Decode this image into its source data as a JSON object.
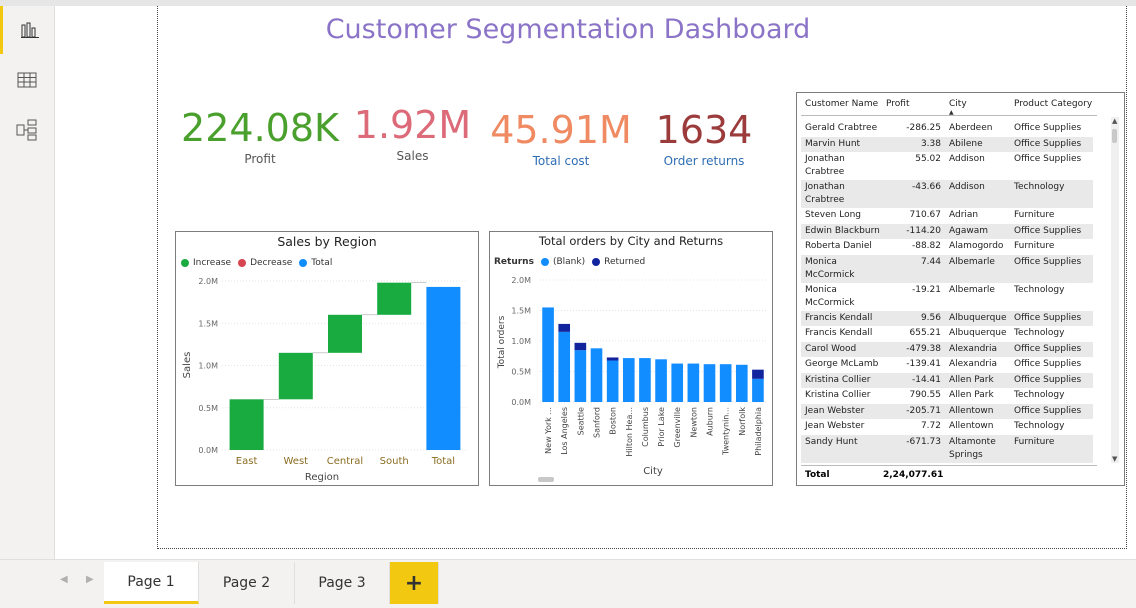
{
  "dashboard": {
    "title": "Customer Segmentation Dashboard"
  },
  "nav": {
    "items": [
      "report-view",
      "data-view",
      "model-view"
    ]
  },
  "kpis": [
    {
      "value": "224.08K",
      "label": "Profit",
      "color": "#4aa02c"
    },
    {
      "value": "1.92M",
      "label": "Sales",
      "color": "#dc6a78"
    },
    {
      "value": "45.91M",
      "label": "Total cost",
      "color": "#ef8a62"
    },
    {
      "value": "1634",
      "label": "Order returns",
      "color": "#9c3b3b"
    }
  ],
  "waterfall": {
    "title": "Sales by Region",
    "legend": [
      "Increase",
      "Decrease",
      "Total"
    ],
    "ylabel": "Sales",
    "xlabel": "Region",
    "yticks": [
      "0.0M",
      "0.5M",
      "1.0M",
      "1.5M",
      "2.0M"
    ]
  },
  "orders": {
    "title": "Total orders by City and Returns",
    "legend_title": "Returns",
    "legend": [
      "(Blank)",
      "Returned"
    ],
    "ylabel": "Total orders",
    "xlabel": "City",
    "yticks": [
      "0.0M",
      "0.5M",
      "1.0M",
      "1.5M",
      "2.0M"
    ]
  },
  "chart_data": [
    {
      "type": "bar",
      "title": "Sales by Region",
      "xlabel": "Region",
      "ylabel": "Sales",
      "ylim": [
        0,
        2.0
      ],
      "categories": [
        "East",
        "West",
        "Central",
        "South",
        "Total"
      ],
      "series": [
        {
          "name": "Increase",
          "values": [
            0.6,
            0.55,
            0.45,
            0.38,
            null
          ]
        },
        {
          "name": "Total",
          "values": [
            null,
            null,
            null,
            null,
            1.93
          ]
        }
      ],
      "grid": true,
      "legend_position": "top-left"
    },
    {
      "type": "bar",
      "title": "Total orders by City and Returns",
      "xlabel": "City",
      "ylabel": "Total orders",
      "ylim": [
        0,
        2.0
      ],
      "categories": [
        "New York ...",
        "Los Angeles",
        "Seattle",
        "Sanford",
        "Boston",
        "Hilton Hea...",
        "Columbus",
        "Prior Lake",
        "Greenville",
        "Newton",
        "Auburn",
        "Twentynin...",
        "Norfolk",
        "Philadelphia"
      ],
      "series": [
        {
          "name": "(Blank)",
          "values": [
            1.55,
            1.15,
            0.85,
            0.88,
            0.68,
            0.72,
            0.72,
            0.7,
            0.63,
            0.63,
            0.62,
            0.62,
            0.61,
            0.38
          ]
        },
        {
          "name": "Returned",
          "values": [
            0.0,
            0.13,
            0.12,
            0.0,
            0.05,
            0.0,
            0.0,
            0.0,
            0.0,
            0.0,
            0.0,
            0.0,
            0.0,
            0.15
          ]
        }
      ],
      "stacked": true,
      "grid": true,
      "legend_position": "top-left"
    }
  ],
  "table": {
    "headers": [
      "Customer Name",
      "Profit",
      "City",
      "Product Category"
    ],
    "rows": [
      [
        "Gerald Crabtree",
        "-286.25",
        "Aberdeen",
        "Office Supplies"
      ],
      [
        "Marvin Hunt",
        "3.38",
        "Abilene",
        "Office Supplies"
      ],
      [
        "Jonathan Crabtree",
        "55.02",
        "Addison",
        "Office Supplies"
      ],
      [
        "Jonathan Crabtree",
        "-43.66",
        "Addison",
        "Technology"
      ],
      [
        "Steven Long",
        "710.67",
        "Adrian",
        "Furniture"
      ],
      [
        "Edwin Blackburn",
        "-114.20",
        "Agawam",
        "Office Supplies"
      ],
      [
        "Roberta Daniel",
        "-88.82",
        "Alamogordo",
        "Furniture"
      ],
      [
        "Monica McCormick",
        "7.44",
        "Albemarle",
        "Office Supplies"
      ],
      [
        "Monica McCormick",
        "-19.21",
        "Albemarle",
        "Technology"
      ],
      [
        "Francis Kendall",
        "9.56",
        "Albuquerque",
        "Office Supplies"
      ],
      [
        "Francis Kendall",
        "655.21",
        "Albuquerque",
        "Technology"
      ],
      [
        "Carol Wood",
        "-479.38",
        "Alexandria",
        "Office Supplies"
      ],
      [
        "George McLamb",
        "-139.41",
        "Alexandria",
        "Office Supplies"
      ],
      [
        "Kristina Collier",
        "-14.41",
        "Allen Park",
        "Office Supplies"
      ],
      [
        "Kristina Collier",
        "790.55",
        "Allen Park",
        "Technology"
      ],
      [
        "Jean Webster",
        "-205.71",
        "Allentown",
        "Office Supplies"
      ],
      [
        "Jean Webster",
        "7.72",
        "Allentown",
        "Technology"
      ],
      [
        "Sandy Hunt",
        "-671.73",
        "Altamonte Springs",
        "Furniture"
      ]
    ],
    "total_label": "Total",
    "total_value": "2,24,077.61"
  },
  "tabs": [
    "Page 1",
    "Page 2",
    "Page 3"
  ],
  "add_tab": "+",
  "colors": {
    "increase": "#1aab40",
    "decrease": "#d64550",
    "total": "#118dff",
    "blank": "#118dff",
    "returned": "#12239e",
    "accent": "#f2c811"
  }
}
